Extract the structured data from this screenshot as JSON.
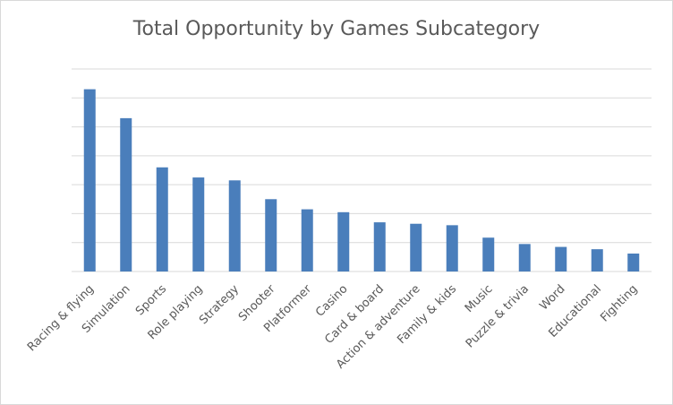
{
  "chart_data": {
    "type": "bar",
    "title": "Total Opportunity by Games Subcategory",
    "xlabel": "",
    "ylabel": "",
    "categories": [
      "Racing & flying",
      "Simulation",
      "Sports",
      "Role playing",
      "Strategy",
      "Shooter",
      "Platformer",
      "Casino",
      "Card & board",
      "Action & adventure",
      "Family & kids",
      "Music",
      "Puzzle & trivia",
      "Word",
      "Educational",
      "Fighting"
    ],
    "values": [
      6.3,
      5.3,
      3.6,
      3.25,
      3.15,
      2.5,
      2.15,
      2.05,
      1.7,
      1.65,
      1.6,
      1.17,
      0.95,
      0.85,
      0.77,
      0.62
    ],
    "ylim": [
      0,
      7
    ],
    "grid": true,
    "y_tick_labels_shown": false,
    "bar_color": "#4a7ebb",
    "gridline_color": "#d9d9d9"
  }
}
